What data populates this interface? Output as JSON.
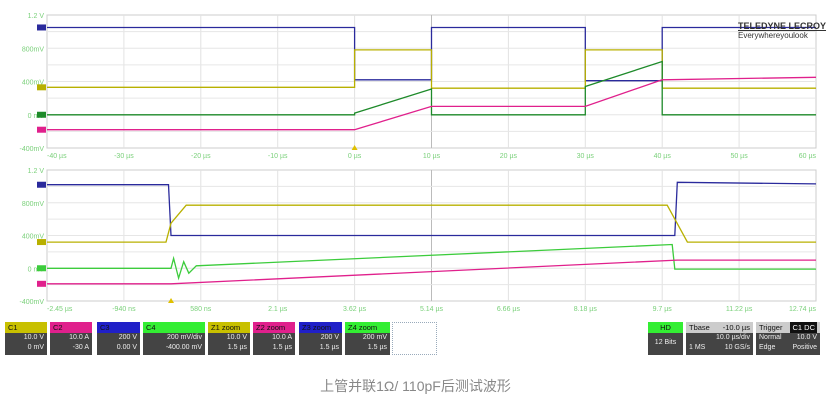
{
  "chart_data": [
    {
      "type": "line",
      "panel": "overview",
      "xlim": [
        -40,
        60
      ],
      "ylim": [
        -0.4,
        1.2
      ],
      "grid": true,
      "x_ticks": [
        "-40 µs",
        "-30 µs",
        "-20 µs",
        "-10 µs",
        "0 µs",
        "10 µs",
        "20 µs",
        "30 µs",
        "40 µs",
        "50 µs",
        "60 µs"
      ],
      "y_ticks": [
        "1.2 V",
        "800mV",
        "400mV",
        "0 mV",
        "-400mV"
      ],
      "series": [
        {
          "name": "C3",
          "color": "#2a2a9c",
          "x": [
            -40,
            0,
            0,
            10,
            10,
            30,
            30,
            40,
            40,
            60
          ],
          "y": [
            1.05,
            1.05,
            0.42,
            0.42,
            1.05,
            1.05,
            0.41,
            0.41,
            1.05,
            1.05
          ]
        },
        {
          "name": "C1",
          "color": "#b8b000",
          "x": [
            -40,
            0,
            0,
            10,
            10,
            30,
            30,
            40,
            40,
            60
          ],
          "y": [
            0.33,
            0.33,
            0.78,
            0.78,
            0.32,
            0.32,
            0.78,
            0.78,
            0.32,
            0.32
          ]
        },
        {
          "name": "C4",
          "color": "#1e8a2a",
          "x": [
            -40,
            0,
            0,
            10,
            10,
            30,
            30,
            40,
            40,
            60
          ],
          "y": [
            0,
            0,
            0.02,
            0.31,
            0,
            0,
            0.34,
            0.64,
            0,
            0
          ]
        },
        {
          "name": "C2",
          "color": "#e0208c",
          "x": [
            -40,
            0,
            10,
            30,
            40,
            60
          ],
          "y": [
            -0.18,
            -0.18,
            0.1,
            0.1,
            0.42,
            0.45
          ]
        }
      ]
    },
    {
      "type": "line",
      "panel": "zoom",
      "xlim": [
        -2.45,
        12.74
      ],
      "ylim": [
        -0.4,
        1.2
      ],
      "grid": true,
      "x_ticks": [
        "-2.45 µs",
        "-940 ns",
        "580 ns",
        "2.1 µs",
        "3.62 µs",
        "5.14 µs",
        "6.66 µs",
        "8.18 µs",
        "9.7 µs",
        "11.22 µs",
        "12.74 µs"
      ],
      "y_ticks": [
        "1.2 V",
        "800mV",
        "400mV",
        "0 mV",
        "-400mV"
      ],
      "series": [
        {
          "name": "Z3",
          "color": "#2a2a9c",
          "x": [
            -2.45,
            -0.05,
            0,
            9.95,
            10.0,
            12.74
          ],
          "y": [
            1.02,
            1.02,
            0.4,
            0.4,
            1.05,
            1.03
          ]
        },
        {
          "name": "Z1",
          "color": "#b8b000",
          "x": [
            -2.45,
            -0.1,
            0,
            0.3,
            9.8,
            10.2,
            12.74
          ],
          "y": [
            0.32,
            0.32,
            0.55,
            0.77,
            0.77,
            0.32,
            0.32
          ]
        },
        {
          "name": "Z4",
          "color": "#3ccc3c",
          "x": [
            -2.45,
            0,
            0.05,
            0.15,
            0.25,
            0.35,
            0.5,
            9.9,
            9.95,
            12.74
          ],
          "y": [
            0,
            0,
            0.12,
            -0.12,
            0.08,
            -0.06,
            0.03,
            0.29,
            -0.01,
            -0.01
          ]
        },
        {
          "name": "Z2",
          "color": "#e0208c",
          "x": [
            -2.45,
            0,
            10,
            12.74
          ],
          "y": [
            -0.19,
            -0.19,
            0.1,
            0.1
          ]
        }
      ]
    }
  ],
  "logo": {
    "brand": "TELEDYNE LECROY",
    "tagline": "Everywhereyoulook"
  },
  "channels": [
    {
      "label": "C1",
      "color": "#c8c000",
      "line1": "10.0 V",
      "line2": "0 mV"
    },
    {
      "label": "C2",
      "color": "#e0208c",
      "line1": "10.0 A",
      "line2": "-30 A"
    },
    {
      "label": "C3",
      "color": "#2020c8",
      "line1": "200 V",
      "line2": "0.00 V"
    },
    {
      "label": "C4",
      "color": "#33ee33",
      "line1": "200 mV/div",
      "line2": "-400.00 mV"
    },
    {
      "label": "Z1 zoom",
      "color": "#c8c000",
      "line1": "10.0 V",
      "line2": "1.5 µs"
    },
    {
      "label": "Z2 zoom",
      "color": "#e0208c",
      "line1": "10.0 A",
      "line2": "1.5 µs"
    },
    {
      "label": "Z3 zoom",
      "color": "#2020c8",
      "line1": "200 V",
      "line2": "1.5 µs"
    },
    {
      "label": "Z4 zoom",
      "color": "#33ee33",
      "line1": "200 mV",
      "line2": "1.5 µs"
    }
  ],
  "hd": {
    "label": "HD",
    "bits": "12 Bits"
  },
  "timebase": {
    "label": "Tbase",
    "delay": "-10.0 µs",
    "div": "10.0 µs/div",
    "samples": "1 MS",
    "rate": "10 GS/s"
  },
  "trigger": {
    "label": "Trigger",
    "source": "C1 DC",
    "mode": "Normal",
    "level": "10.0 V",
    "type": "Edge",
    "slope": "Positive"
  },
  "caption": "上管并联1Ω/ 110pF后测试波形"
}
